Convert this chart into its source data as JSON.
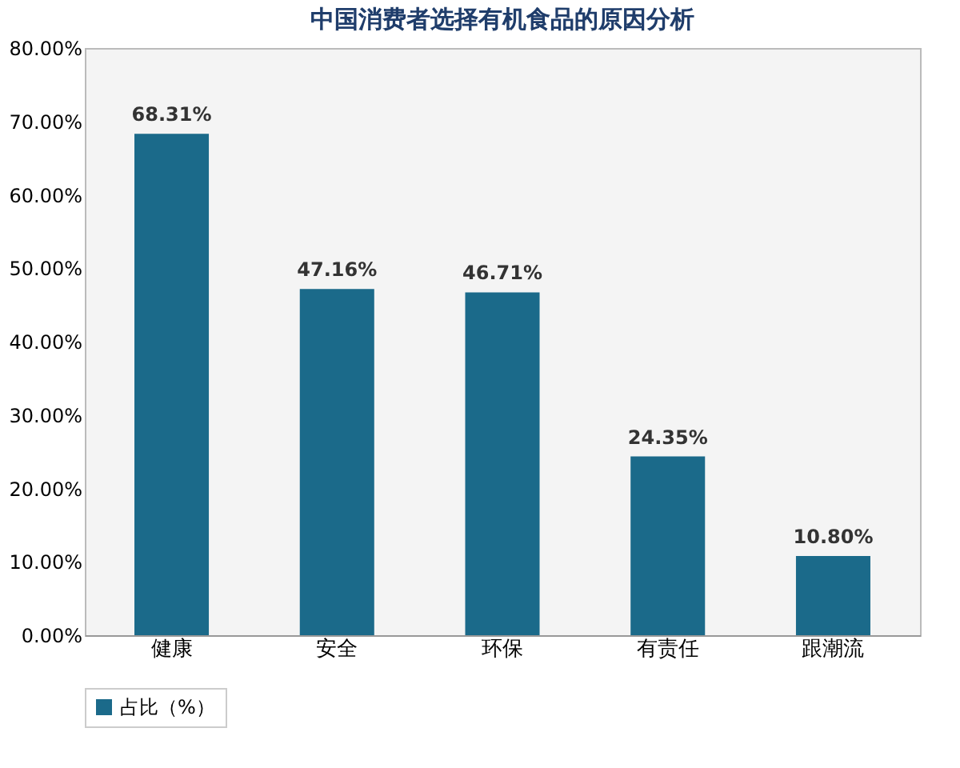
{
  "chart_data": {
    "type": "bar",
    "title": "中国消费者选择有机食品的原因分析",
    "categories": [
      "健康",
      "安全",
      "环保",
      "有责任",
      "跟潮流"
    ],
    "series": [
      {
        "name": "占比（%）",
        "color": "#1b6a8a",
        "values": [
          68.31,
          47.16,
          46.71,
          24.35,
          10.8
        ],
        "value_labels": [
          "68.31%",
          "47.16%",
          "46.71%",
          "24.35%",
          "10.80%"
        ]
      }
    ],
    "ylim": [
      0,
      80
    ],
    "yticks": [
      {
        "value": 0,
        "label": "0.00%"
      },
      {
        "value": 10,
        "label": "10.00%"
      },
      {
        "value": 20,
        "label": "20.00%"
      },
      {
        "value": 30,
        "label": "30.00%"
      },
      {
        "value": 40,
        "label": "40.00%"
      },
      {
        "value": 50,
        "label": "50.00%"
      },
      {
        "value": 60,
        "label": "60.00%"
      },
      {
        "value": 70,
        "label": "70.00%"
      },
      {
        "value": 80,
        "label": "80.00%"
      }
    ],
    "grid": false,
    "legend": "bottom"
  }
}
